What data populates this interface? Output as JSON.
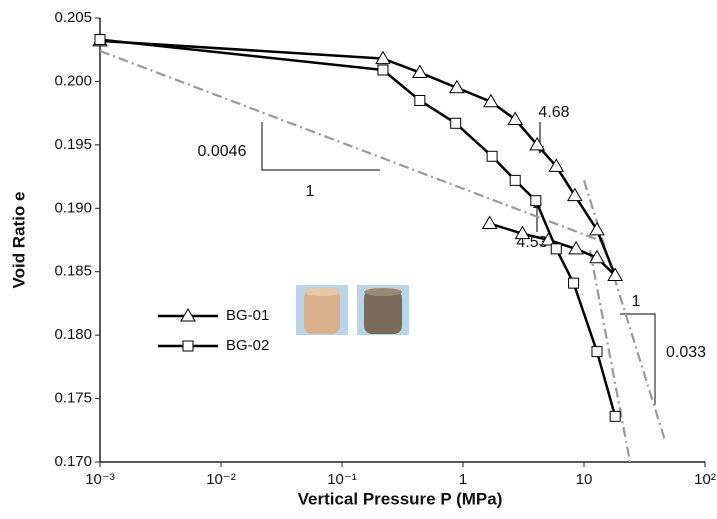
{
  "chart_data": {
    "type": "line",
    "xlabel": "Vertical Pressure  P (MPa)",
    "ylabel": "Void Ratio e",
    "xscale": "log",
    "xlim": [
      0.001,
      100
    ],
    "xticks": [
      {
        "value": 0.001,
        "label": "10⁻³"
      },
      {
        "value": 0.01,
        "label": "10⁻²"
      },
      {
        "value": 0.1,
        "label": "10⁻¹"
      },
      1,
      10,
      {
        "value": 100,
        "label": "10²"
      }
    ],
    "ylim": [
      0.17,
      0.205
    ],
    "yticks": [
      {
        "value": 0.17,
        "label": "0.170"
      },
      0.175,
      {
        "value": 0.18,
        "label": "0.180"
      },
      0.185,
      {
        "value": 0.19,
        "label": "0.190"
      },
      0.195,
      {
        "value": 0.2,
        "label": "0.200"
      },
      0.205
    ],
    "series": [
      {
        "name": "BG-01",
        "color": "#000000",
        "marker": "triangle",
        "x": [
          0.001,
          0.218,
          0.44,
          0.89,
          1.7,
          2.7,
          4.1,
          5.9,
          8.4,
          12.8,
          18.1,
          12.8,
          8.6,
          5.1,
          3.1,
          1.66
        ],
        "values": [
          0.2032,
          0.2018,
          0.2007,
          0.1995,
          0.1984,
          0.197,
          0.195,
          0.1933,
          0.191,
          0.1883,
          0.1847,
          0.1861,
          0.1868,
          0.1875,
          0.188,
          0.1888
        ]
      },
      {
        "name": "BG-02",
        "color": "#000000",
        "marker": "square",
        "x": [
          0.001,
          0.218,
          0.44,
          0.87,
          1.74,
          2.7,
          4.0,
          5.9,
          8.2,
          12.8,
          18.1
        ],
        "values": [
          0.2033,
          0.2009,
          0.1985,
          0.1967,
          0.1941,
          0.1922,
          0.1906,
          0.1868,
          0.1841,
          0.1787,
          0.1736
        ]
      }
    ],
    "reference_lines": [
      {
        "color": "#999999",
        "x": [
          0.001,
          15
        ],
        "values": [
          0.2024,
          0.1873
        ]
      },
      {
        "color": "#999999",
        "x": [
          10,
          46.7
        ],
        "values": [
          0.1922,
          0.1717
        ]
      },
      {
        "color": "#999999",
        "x": [
          11.2,
          24
        ],
        "values": [
          0.1867,
          0.17
        ]
      }
    ],
    "annotations": [
      "0.0046",
      "1",
      "4.68",
      "4.53",
      "1",
      "0.033"
    ]
  }
}
